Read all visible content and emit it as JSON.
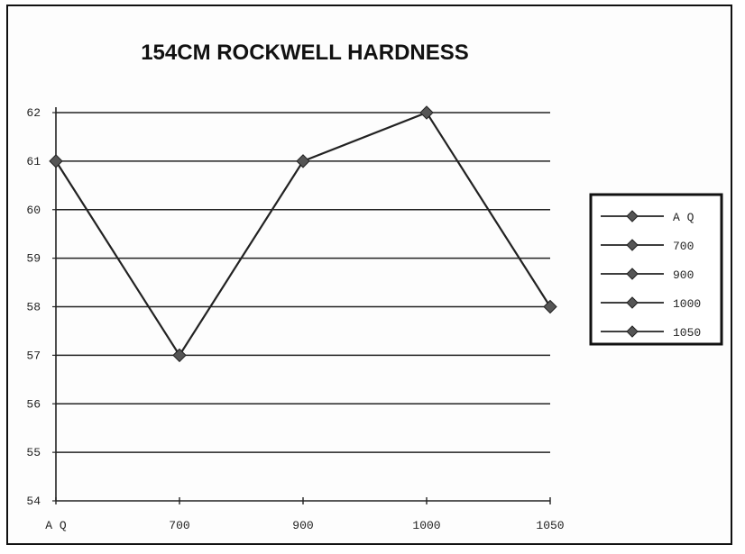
{
  "chart_data": {
    "type": "line",
    "title": "154CM ROCKWELL HARDNESS",
    "xlabel": "",
    "ylabel": "",
    "categories": [
      "A Q",
      "700",
      "900",
      "1000",
      "1050"
    ],
    "values": [
      61,
      57,
      61,
      62,
      58
    ],
    "ylim": [
      54,
      62
    ],
    "yticks": [
      "54",
      "55",
      "56",
      "57",
      "58",
      "59",
      "60",
      "61",
      "62"
    ],
    "grid": true,
    "legend": {
      "placement": "right",
      "entries": [
        "A Q",
        "700",
        "900",
        "1000",
        "1050"
      ]
    }
  },
  "colors": {
    "line": "#222222",
    "marker": "#555555",
    "grid": "#222222"
  }
}
